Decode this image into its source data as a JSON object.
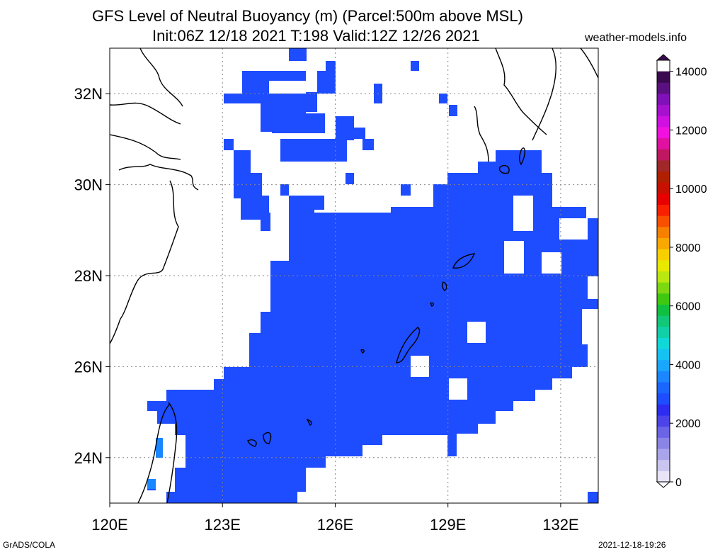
{
  "title_line1": "GFS Level of Neutral Buoyancy (m) (Parcel:500m above MSL)",
  "title_line2": "Init:06Z 12/18 2021 T:198 Valid:12Z 12/26 2021",
  "site": "weather-models.info",
  "footer_left": "GrADS/COLA",
  "footer_right": "2021-12-18-19:26",
  "map": {
    "lon_range": [
      120,
      133
    ],
    "lat_range": [
      23,
      33
    ],
    "lon_ticks": [
      "120E",
      "123E",
      "126E",
      "129E",
      "132E"
    ],
    "lat_ticks": [
      "24N",
      "26N",
      "28N",
      "30N",
      "32N"
    ],
    "fill_color": "#1e4cff",
    "grid": "dotted"
  },
  "colorbar": {
    "labels": [
      "0",
      "2000",
      "4000",
      "6000",
      "8000",
      "10000",
      "12000",
      "14000"
    ],
    "colors": [
      "#e8e4f6",
      "#c9c4f0",
      "#aaa4ea",
      "#8a84e6",
      "#6b64e6",
      "#4c44ea",
      "#2d2cf0",
      "#1e4cff",
      "#1a66ff",
      "#1a86ff",
      "#19a6ff",
      "#16c2f2",
      "#10d8d8",
      "#10d0a8",
      "#10c878",
      "#10c040",
      "#40c810",
      "#7cd810",
      "#b8e810",
      "#e8e800",
      "#f8d000",
      "#f8a800",
      "#f88000",
      "#f85000",
      "#f82000",
      "#e80000",
      "#c81000",
      "#b02000",
      "#a02828",
      "#c01860",
      "#e010a0",
      "#f010e0",
      "#d010e0",
      "#a810d0",
      "#8010b8",
      "#5a1080",
      "#3a0a50"
    ]
  }
}
